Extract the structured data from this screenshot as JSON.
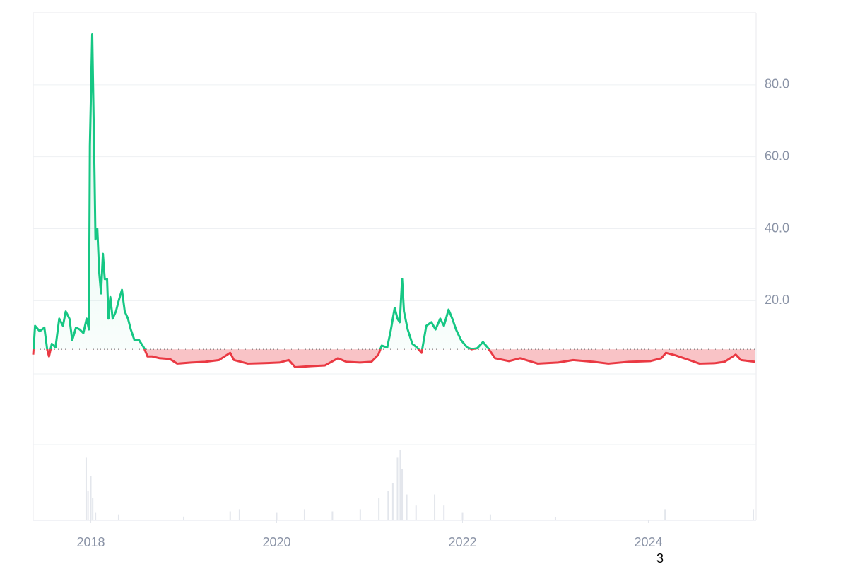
{
  "chart_data": {
    "type": "line",
    "x": [
      2017.38,
      2017.4,
      2017.45,
      2017.5,
      2017.53,
      2017.55,
      2017.58,
      2017.62,
      2017.66,
      2017.7,
      2017.73,
      2017.77,
      2017.8,
      2017.84,
      2017.88,
      2017.92,
      2017.955,
      2017.98,
      2017.99,
      2018.015,
      2018.04,
      2018.05,
      2018.07,
      2018.09,
      2018.11,
      2018.13,
      2018.15,
      2018.175,
      2018.19,
      2018.21,
      2018.235,
      2018.27,
      2018.3,
      2018.335,
      2018.365,
      2018.4,
      2018.43,
      2018.47,
      2018.52,
      2018.57,
      2018.61,
      2018.66,
      2018.74,
      2018.85,
      2018.93,
      2019.08,
      2019.23,
      2019.38,
      2019.5,
      2019.54,
      2019.69,
      2019.84,
      2020.03,
      2020.13,
      2020.2,
      2020.37,
      2020.52,
      2020.66,
      2020.75,
      2020.9,
      2021.02,
      2021.095,
      2021.13,
      2021.19,
      2021.23,
      2021.27,
      2021.3,
      2021.325,
      2021.35,
      2021.37,
      2021.41,
      2021.46,
      2021.51,
      2021.56,
      2021.61,
      2021.665,
      2021.71,
      2021.76,
      2021.8,
      2021.85,
      2021.89,
      2021.93,
      2021.985,
      2022.05,
      2022.1,
      2022.16,
      2022.22,
      2022.27,
      2022.35,
      2022.5,
      2022.62,
      2022.81,
      2023.03,
      2023.19,
      2023.41,
      2023.57,
      2023.79,
      2024.02,
      2024.14,
      2024.19,
      2024.29,
      2024.44,
      2024.55,
      2024.71,
      2024.82,
      2024.94,
      2024.997,
      2025.15
    ],
    "values": [
      5,
      13,
      11.5,
      12.5,
      6.5,
      4.5,
      8,
      7,
      15,
      13,
      17,
      15,
      9,
      12.5,
      12,
      11,
      15,
      12,
      63,
      94,
      55,
      37,
      40,
      28,
      22,
      33,
      26,
      26,
      15,
      21,
      15,
      17,
      20,
      23,
      17,
      15,
      12,
      9,
      9,
      7,
      4.5,
      4.5,
      4,
      3.8,
      2.5,
      2.8,
      3,
      3.5,
      5.5,
      3.5,
      2.5,
      2.6,
      2.8,
      3.5,
      1.5,
      1.8,
      2,
      4,
      3,
      2.8,
      3,
      5,
      7.5,
      7,
      12,
      18,
      15,
      14,
      26,
      17,
      12,
      8,
      7,
      5.5,
      13,
      14,
      12,
      15,
      13,
      17.5,
      15,
      12,
      9,
      7,
      6.5,
      6.8,
      8.5,
      7,
      4,
      3.2,
      4,
      2.5,
      2.8,
      3.5,
      3,
      2.5,
      3,
      3.2,
      4,
      5.5,
      4.8,
      3.5,
      2.5,
      2.6,
      3,
      5,
      3.5,
      3
    ],
    "baseline": 6.5,
    "up_color": "#16c784",
    "down_color": "#ea3943",
    "xlim": [
      2017.38,
      2025.16
    ],
    "xticks": [
      2018,
      2020,
      2022,
      2024
    ],
    "ylim": [
      -20,
      100
    ],
    "yticks": [
      {
        "value": 20,
        "label": "20.0"
      },
      {
        "value": 40,
        "label": "40.0"
      },
      {
        "value": 60,
        "label": "60.0"
      },
      {
        "value": 80,
        "label": "80.0"
      }
    ],
    "grid": true,
    "volume": {
      "color": "#e3e6ec",
      "x": [
        2017.95,
        2017.97,
        2018.0,
        2018.02,
        2018.05,
        2018.3,
        2019.0,
        2019.5,
        2019.6,
        2020.0,
        2020.3,
        2020.6,
        2020.9,
        2021.1,
        2021.2,
        2021.25,
        2021.3,
        2021.33,
        2021.35,
        2021.4,
        2021.5,
        2021.7,
        2021.8,
        2022.0,
        2022.3,
        2023.0,
        2024.18,
        2025.13
      ],
      "values": [
        85,
        40,
        60,
        30,
        10,
        8,
        5,
        12,
        15,
        10,
        15,
        12,
        15,
        30,
        40,
        50,
        85,
        95,
        70,
        35,
        20,
        35,
        20,
        10,
        8,
        4,
        15,
        15
      ]
    },
    "footnote": "3"
  }
}
